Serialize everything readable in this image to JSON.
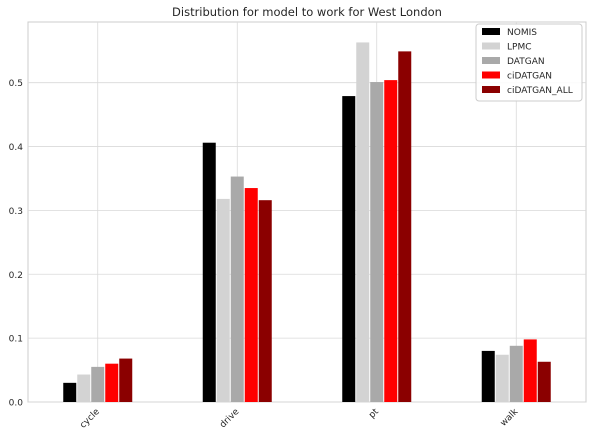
{
  "chart_data": {
    "type": "bar",
    "title": "Distribution for model to work for West London",
    "xlabel": "",
    "ylabel": "",
    "ylim": [
      0,
      0.595
    ],
    "yticks": [
      0.0,
      0.1,
      0.2,
      0.3,
      0.4,
      0.5
    ],
    "ytick_labels": [
      "0.0",
      "0.1",
      "0.2",
      "0.3",
      "0.4",
      "0.5"
    ],
    "categories": [
      "cycle",
      "drive",
      "pt",
      "walk"
    ],
    "grid": true,
    "legend_position": "top-right",
    "series": [
      {
        "name": "NOMIS",
        "color": "#000000",
        "values": [
          0.03,
          0.406,
          0.479,
          0.08
        ]
      },
      {
        "name": "LPMC",
        "color": "#d3d3d3",
        "values": [
          0.043,
          0.318,
          0.563,
          0.074
        ]
      },
      {
        "name": "DATGAN",
        "color": "#a9a9a9",
        "values": [
          0.055,
          0.353,
          0.501,
          0.088
        ]
      },
      {
        "name": "ciDATGAN",
        "color": "#ff0000",
        "values": [
          0.06,
          0.335,
          0.504,
          0.098
        ]
      },
      {
        "name": "ciDATGAN_ALL",
        "color": "#8b0000",
        "values": [
          0.068,
          0.316,
          0.549,
          0.063
        ]
      }
    ]
  }
}
